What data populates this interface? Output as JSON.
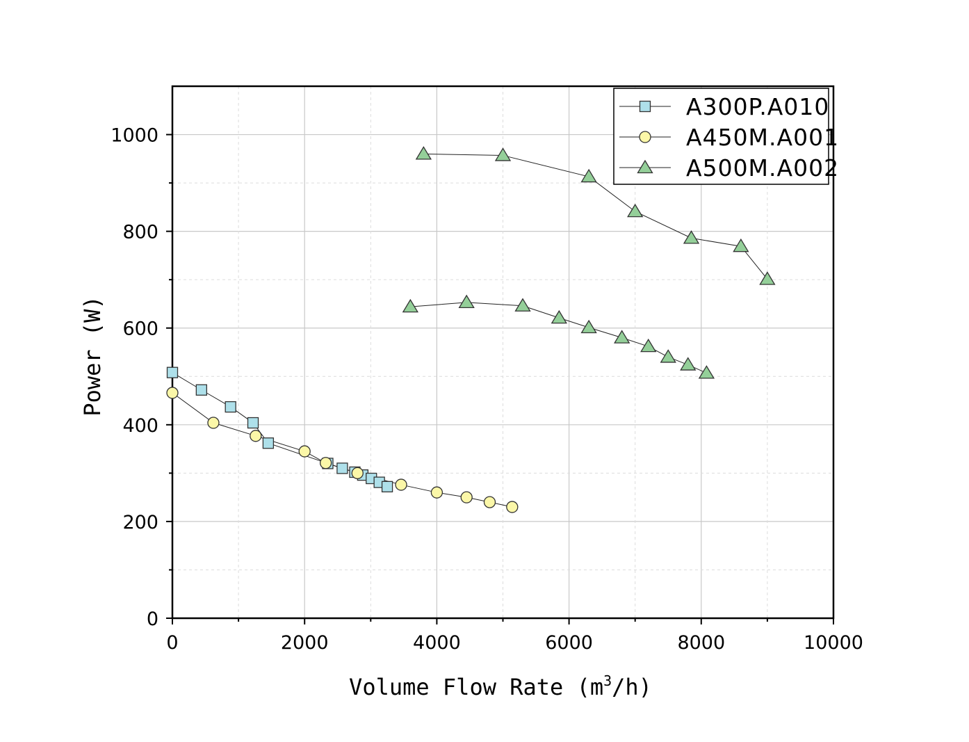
{
  "chart_data": {
    "type": "line",
    "title": "",
    "xlabel": "Volume Flow Rate (m",
    "xlabel_sup": "3",
    "xlabel_tail": "/h)",
    "ylabel": "Power (W)",
    "xlim": [
      0,
      10000
    ],
    "ylim": [
      0,
      1100
    ],
    "x_ticks": [
      0,
      2000,
      4000,
      6000,
      8000,
      10000
    ],
    "x_tick_labels": [
      "0",
      "2000",
      "4000",
      "6000",
      "8000",
      "10000"
    ],
    "y_ticks": [
      0,
      200,
      400,
      600,
      800,
      1000
    ],
    "y_tick_labels": [
      "0",
      "200",
      "400",
      "600",
      "800",
      "1000"
    ],
    "grid": true,
    "legend_position": "top-right",
    "series": [
      {
        "name": "A300P.A010",
        "marker": "square",
        "color": "#aee0ea",
        "segments": [
          [
            [
              0,
              508
            ],
            [
              440,
              472
            ],
            [
              880,
              437
            ],
            [
              1220,
              404
            ],
            [
              1450,
              362
            ],
            [
              2350,
              320
            ],
            [
              2570,
              310
            ],
            [
              2760,
              302
            ],
            [
              2880,
              296
            ],
            [
              3010,
              289
            ],
            [
              3130,
              281
            ],
            [
              3250,
              272
            ]
          ]
        ]
      },
      {
        "name": "A450M.A001",
        "marker": "circle",
        "color": "#fbf7a8",
        "segments": [
          [
            [
              0,
              466
            ],
            [
              620,
              404
            ],
            [
              1260,
              377
            ],
            [
              2000,
              345
            ],
            [
              2320,
              321
            ],
            [
              2800,
              300
            ],
            [
              3460,
              276
            ],
            [
              4000,
              260
            ],
            [
              4450,
              250
            ],
            [
              4800,
              240
            ],
            [
              5140,
              230
            ]
          ]
        ]
      },
      {
        "name": "A500M.A002",
        "marker": "triangle",
        "color": "#94cf99",
        "segments": [
          [
            [
              3800,
              960
            ],
            [
              5000,
              957
            ],
            [
              6300,
              913
            ],
            [
              7000,
              841
            ],
            [
              7850,
              786
            ],
            [
              8600,
              769
            ],
            [
              9000,
              701
            ]
          ],
          [
            [
              3600,
              644
            ],
            [
              4450,
              653
            ],
            [
              5300,
              646
            ],
            [
              5850,
              621
            ],
            [
              6300,
              601
            ],
            [
              6800,
              580
            ],
            [
              7200,
              562
            ],
            [
              7500,
              540
            ],
            [
              7800,
              524
            ],
            [
              8080,
              507
            ]
          ]
        ]
      }
    ]
  }
}
